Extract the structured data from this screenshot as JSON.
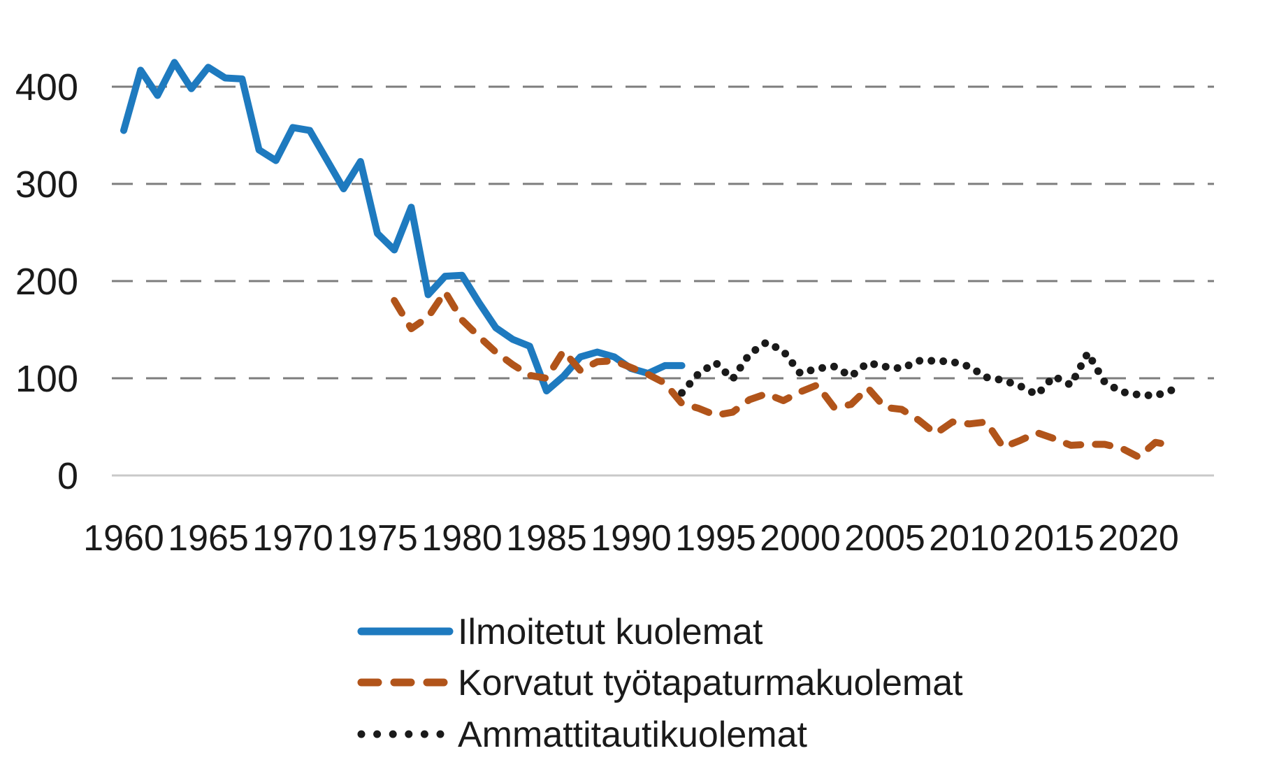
{
  "figure": {
    "background": "#ffffff",
    "grid_color": "#7d7d7d",
    "baseline_color": "#c9c9c9",
    "text_color": "#1a1a1a"
  },
  "chart_data": {
    "type": "line",
    "title": "",
    "xlabel": "",
    "ylabel": "",
    "ylim": [
      0,
      450
    ],
    "yticks": [
      0,
      100,
      200,
      300,
      400
    ],
    "xticks": [
      1960,
      1965,
      1970,
      1975,
      1980,
      1985,
      1990,
      1995,
      2000,
      2005,
      2010,
      2015,
      2020
    ],
    "x_range": [
      1960,
      2022
    ],
    "grid": "horizontal-dashed",
    "legend_position": "bottom-left",
    "series": [
      {
        "name": "Ilmoitetut kuolemat",
        "style": "solid",
        "color": "#1E7ABF",
        "start_year": 1960,
        "values": [
          355,
          417,
          391,
          425,
          398,
          420,
          409,
          408,
          335,
          324,
          358,
          355,
          325,
          295,
          323,
          249,
          232,
          276,
          186,
          205,
          206,
          178,
          152,
          140,
          133,
          87,
          102,
          122,
          127,
          122,
          110,
          105,
          113,
          113
        ]
      },
      {
        "name": "Korvatut työtapaturmakuolemat",
        "style": "dashed",
        "color": "#B1541A",
        "start_year": 1976,
        "values": [
          180,
          151,
          163,
          189,
          160,
          143,
          127,
          114,
          103,
          100,
          128,
          108,
          117,
          118,
          111,
          104,
          95,
          74,
          69,
          62,
          65,
          78,
          84,
          77,
          86,
          93,
          70,
          73,
          90,
          70,
          68,
          57,
          43,
          55,
          53,
          55,
          29,
          36,
          44,
          38,
          31,
          32,
          32,
          28,
          19,
          34,
          31
        ]
      },
      {
        "name": "Ammattitautikuolemat",
        "style": "dotted",
        "color": "#1A1A1A",
        "start_year": 1993,
        "values": [
          85,
          105,
          116,
          99,
          125,
          137,
          128,
          105,
          110,
          112,
          102,
          116,
          112,
          110,
          118,
          118,
          117,
          112,
          101,
          98,
          92,
          83,
          102,
          93,
          126,
          96,
          86,
          83,
          82,
          88
        ]
      }
    ]
  }
}
